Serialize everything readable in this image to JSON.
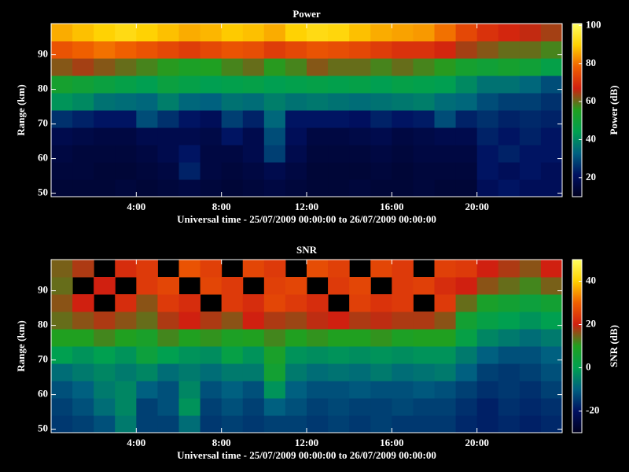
{
  "chart_data": [
    {
      "type": "heatmap",
      "title": "Power",
      "x_label": "Universal time - 25/07/2009 00:00:00 to 26/07/2009 00:00:00",
      "y_label": "Range (km)",
      "xlim": [
        0,
        24
      ],
      "ylim": [
        49,
        99
      ],
      "xticks": [
        {
          "value": 4,
          "label": "4:00"
        },
        {
          "value": 8,
          "label": "8:00"
        },
        {
          "value": 12,
          "label": "12:00"
        },
        {
          "value": 16,
          "label": "16:00"
        },
        {
          "value": 20,
          "label": "20:00"
        }
      ],
      "yticks": [
        50,
        60,
        70,
        80,
        90
      ],
      "x_edges": [
        0,
        1,
        2,
        3,
        4,
        5,
        6,
        7,
        8,
        9,
        10,
        11,
        12,
        13,
        14,
        15,
        16,
        17,
        18,
        19,
        20,
        21,
        22,
        23,
        24
      ],
      "y_edges": [
        49,
        54,
        59,
        64,
        69,
        74,
        79,
        84,
        89,
        94,
        99
      ],
      "z": [
        [
          14,
          14,
          14,
          15,
          14,
          15,
          16,
          15,
          14,
          15,
          16,
          15,
          14,
          14,
          15,
          14,
          14,
          15,
          14,
          14,
          20,
          22,
          20,
          20
        ],
        [
          15,
          15,
          14,
          14,
          15,
          16,
          24,
          16,
          15,
          16,
          18,
          16,
          14,
          14,
          14,
          15,
          14,
          15,
          15,
          15,
          22,
          20,
          22,
          20
        ],
        [
          16,
          15,
          15,
          15,
          16,
          18,
          22,
          16,
          16,
          18,
          28,
          18,
          15,
          15,
          15,
          16,
          15,
          16,
          16,
          16,
          22,
          24,
          22,
          22
        ],
        [
          18,
          17,
          16,
          16,
          18,
          18,
          18,
          17,
          22,
          18,
          30,
          20,
          16,
          16,
          17,
          18,
          16,
          17,
          18,
          18,
          24,
          22,
          24,
          22
        ],
        [
          26,
          24,
          22,
          22,
          30,
          26,
          22,
          20,
          28,
          24,
          34,
          22,
          22,
          22,
          21,
          24,
          22,
          23,
          30,
          24,
          26,
          24,
          25,
          24
        ],
        [
          42,
          40,
          36,
          35,
          34,
          38,
          34,
          33,
          36,
          35,
          38,
          36,
          37,
          36,
          35,
          36,
          37,
          38,
          35,
          34,
          30,
          28,
          28,
          26
        ],
        [
          52,
          50,
          48,
          46,
          44,
          48,
          46,
          44,
          45,
          46,
          44,
          45,
          46,
          45,
          46,
          44,
          46,
          45,
          44,
          40,
          36,
          36,
          34,
          30
        ],
        [
          62,
          64,
          62,
          60,
          58,
          56,
          54,
          55,
          58,
          60,
          56,
          58,
          62,
          60,
          60,
          58,
          60,
          58,
          56,
          52,
          50,
          52,
          50,
          46
        ],
        [
          76,
          78,
          80,
          78,
          76,
          74,
          72,
          74,
          76,
          75,
          72,
          74,
          76,
          75,
          74,
          72,
          70,
          70,
          68,
          64,
          62,
          60,
          60,
          58
        ],
        [
          86,
          88,
          90,
          92,
          90,
          88,
          86,
          87,
          89,
          88,
          86,
          90,
          92,
          91,
          88,
          86,
          85,
          84,
          80,
          74,
          70,
          68,
          66,
          64
        ]
      ],
      "colorbar": {
        "label": "Power (dB)",
        "lim": [
          10,
          101
        ],
        "ticks": [
          20,
          40,
          60,
          80,
          100
        ]
      },
      "colormap": [
        "#000020",
        "#001060",
        "#006080",
        "#00a050",
        "#20a020",
        "#d02010",
        "#f06000",
        "#ffd000",
        "#ffff60"
      ]
    },
    {
      "type": "heatmap",
      "title": "SNR",
      "x_label": "Universal time - 25/07/2009 00:00:00 to 26/07/2009 00:00:00",
      "y_label": "Range (km)",
      "xlim": [
        0,
        24
      ],
      "ylim": [
        49,
        99
      ],
      "xticks": [
        {
          "value": 4,
          "label": "4:00"
        },
        {
          "value": 8,
          "label": "8:00"
        },
        {
          "value": 12,
          "label": "12:00"
        },
        {
          "value": 16,
          "label": "16:00"
        },
        {
          "value": 20,
          "label": "20:00"
        }
      ],
      "yticks": [
        50,
        60,
        70,
        80,
        90
      ],
      "x_edges": [
        0,
        1,
        2,
        3,
        4,
        5,
        6,
        7,
        8,
        9,
        10,
        11,
        12,
        13,
        14,
        15,
        16,
        17,
        18,
        19,
        20,
        21,
        22,
        23,
        24
      ],
      "y_edges": [
        49,
        54,
        59,
        64,
        69,
        74,
        79,
        84,
        89,
        94,
        99
      ],
      "z": [
        [
          -15,
          -14,
          -12,
          -6,
          -14,
          -14,
          -8,
          -15,
          -14,
          -15,
          -14,
          -14,
          -15,
          -14,
          -15,
          -14,
          -15,
          -15,
          -15,
          -17,
          -18,
          -17,
          -18,
          -17
        ],
        [
          -14,
          -12,
          -8,
          -4,
          -14,
          -12,
          -2,
          -14,
          -12,
          -14,
          -10,
          -12,
          -14,
          -13,
          -14,
          -14,
          -13,
          -14,
          -14,
          -16,
          -18,
          -16,
          -17,
          -16
        ],
        [
          -12,
          -10,
          -6,
          -4,
          -10,
          -12,
          -4,
          -12,
          -10,
          -12,
          -2,
          -10,
          -12,
          -12,
          -11,
          -12,
          -12,
          -11,
          -12,
          -14,
          -16,
          -15,
          -16,
          -14
        ],
        [
          -8,
          -6,
          -4,
          -6,
          -4,
          -8,
          -6,
          -8,
          -6,
          -6,
          6,
          -6,
          -8,
          -7,
          -8,
          -6,
          -8,
          -7,
          -6,
          -10,
          -14,
          -15,
          -14,
          -12
        ],
        [
          0,
          -2,
          0,
          -2,
          4,
          0,
          -2,
          -3,
          2,
          -2,
          8,
          -2,
          -3,
          -2,
          -3,
          -2,
          -3,
          -2,
          -2,
          -6,
          -10,
          -12,
          -12,
          -10
        ],
        [
          10,
          10,
          12,
          10,
          8,
          12,
          10,
          11,
          9,
          10,
          12,
          10,
          11,
          10,
          10,
          11,
          9,
          10,
          10,
          2,
          -4,
          -6,
          -8,
          -6
        ],
        [
          14,
          16,
          18,
          16,
          14,
          18,
          20,
          18,
          16,
          20,
          18,
          17,
          19,
          20,
          18,
          19,
          18,
          18,
          16,
          6,
          2,
          0,
          -2,
          0
        ],
        [
          16,
          20,
          null,
          22,
          16,
          24,
          22,
          null,
          24,
          22,
          26,
          24,
          22,
          null,
          25,
          23,
          24,
          null,
          24,
          14,
          8,
          6,
          4,
          6
        ],
        [
          14,
          null,
          20,
          null,
          24,
          26,
          null,
          26,
          24,
          null,
          25,
          26,
          null,
          24,
          26,
          null,
          24,
          25,
          22,
          20,
          16,
          14,
          12,
          15
        ],
        [
          15,
          18,
          null,
          22,
          24,
          null,
          28,
          25,
          null,
          26,
          24,
          null,
          27,
          25,
          null,
          26,
          24,
          null,
          25,
          24,
          20,
          18,
          16,
          20
        ]
      ],
      "colorbar": {
        "label": "SNR (dB)",
        "lim": [
          -30,
          50
        ],
        "ticks": [
          -20,
          0,
          20,
          40
        ]
      },
      "colormap": [
        "#000020",
        "#001060",
        "#006080",
        "#00a050",
        "#20a020",
        "#d02010",
        "#f06000",
        "#ffd000",
        "#ffff60"
      ]
    }
  ]
}
